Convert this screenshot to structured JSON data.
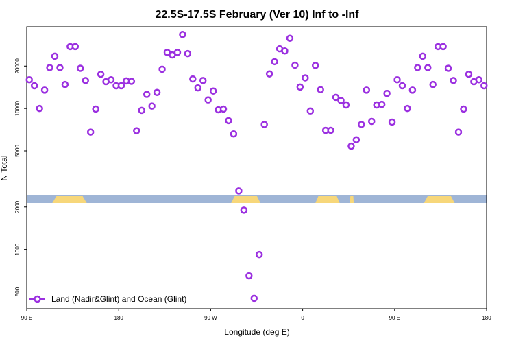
{
  "chart_data": {
    "type": "scatter",
    "title": "22.5S-17.5S February (Ver 10)   Inf to -Inf",
    "xlabel": "Longitude (deg E)",
    "ylabel": "N Total",
    "xlim": [
      0,
      360
    ],
    "ylim_log": [
      380,
      38000
    ],
    "x_ticks": [
      {
        "value": 0,
        "label": "90 E"
      },
      {
        "value": 72,
        "label": "180"
      },
      {
        "value": 144,
        "label": "90 W"
      },
      {
        "value": 216,
        "label": "0"
      },
      {
        "value": 288,
        "label": "90 E"
      },
      {
        "value": 360,
        "label": "180"
      }
    ],
    "y_ticks": [
      {
        "value": 500,
        "label": "500"
      },
      {
        "value": 1000,
        "label": "1000"
      },
      {
        "value": 2000,
        "label": "2000"
      },
      {
        "value": 5000,
        "label": "5000"
      },
      {
        "value": 10000,
        "label": "10000"
      },
      {
        "value": 20000,
        "label": "20000"
      }
    ],
    "legend": {
      "position": "bottom-left",
      "entries": [
        "Land (Nadir&Glint) and Ocean (Glint)"
      ]
    },
    "series": [
      {
        "name": "Land (Nadir&Glint) and Ocean (Glint)",
        "color": "#9b30e0",
        "x": [
          2,
          6,
          10,
          14,
          18,
          22,
          26,
          30,
          34,
          38,
          42,
          46,
          50,
          54,
          58,
          62,
          66,
          70,
          74,
          78,
          82,
          86,
          90,
          94,
          98,
          102,
          106,
          110,
          114,
          118,
          122,
          126,
          130,
          134,
          138,
          142,
          146,
          150,
          154,
          158,
          162,
          166,
          170,
          174,
          178,
          182,
          186,
          190,
          194,
          198,
          202,
          206,
          210,
          214,
          218,
          222,
          226,
          230,
          234,
          238,
          242,
          246,
          250,
          254,
          258,
          262,
          266,
          270,
          274,
          278,
          282,
          286,
          290,
          294,
          298,
          302,
          306,
          310,
          314,
          318,
          322,
          326,
          330,
          334,
          338,
          342,
          346,
          350,
          354,
          358
        ],
        "y": [
          16000,
          14500,
          10000,
          13500,
          19500,
          23500,
          19500,
          14800,
          27500,
          27500,
          19300,
          15800,
          6800,
          9900,
          17500,
          15500,
          16000,
          14500,
          14500,
          15700,
          15600,
          6950,
          9700,
          12600,
          10400,
          13000,
          19000,
          25000,
          24000,
          25000,
          33500,
          24500,
          16200,
          14000,
          15800,
          11500,
          13300,
          9800,
          9900,
          8200,
          6600,
          2600,
          1900,
          650,
          450,
          920,
          7700,
          17600,
          21500,
          26500,
          25600,
          31500,
          20300,
          14200,
          16500,
          9600,
          20200,
          13600,
          7000,
          7000,
          12000,
          11400,
          10600,
          5400,
          6000,
          7700,
          13500,
          8100,
          10600,
          10700,
          12800,
          8000,
          16000,
          14500,
          10000,
          13500,
          19500,
          23500,
          19500,
          14800,
          27500,
          27500,
          19300,
          15800,
          6800,
          9900,
          17500,
          15500,
          16000,
          14500
        ]
      }
    ],
    "surface_band": {
      "ocean_color": "#9fb5d6",
      "land_color": "#f7d77a",
      "land_ranges_longitude_index": [
        [
          20,
          47
        ],
        [
          160,
          183
        ],
        [
          226,
          245
        ],
        [
          253,
          256
        ],
        [
          311,
          335
        ]
      ]
    }
  }
}
